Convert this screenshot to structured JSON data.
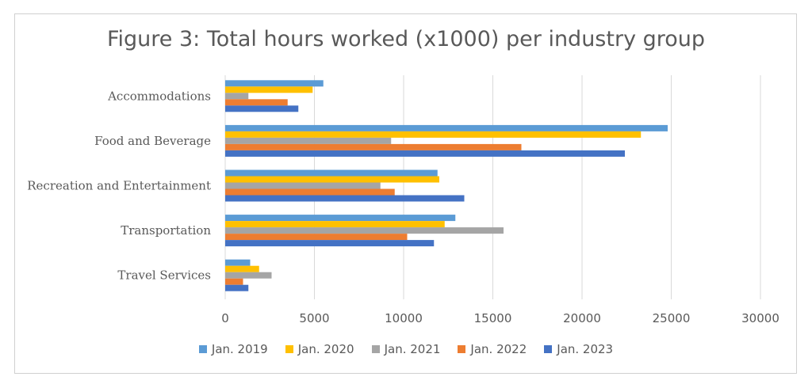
{
  "chart_data": {
    "type": "bar",
    "orientation": "horizontal",
    "title": "Figure 3: Total hours worked (x1000) per industry group",
    "categories": [
      "Accommodations",
      "Food and Beverage",
      "Recreation and Entertainment",
      "Transportation",
      "Travel Services"
    ],
    "series": [
      {
        "name": "Jan. 2019",
        "color": "#5B9BD5",
        "values": [
          5500,
          24800,
          11900,
          12900,
          1400
        ]
      },
      {
        "name": "Jan. 2020",
        "color": "#FFC000",
        "values": [
          4900,
          23300,
          12000,
          12300,
          1900
        ]
      },
      {
        "name": "Jan. 2021",
        "color": "#A5A5A5",
        "values": [
          1300,
          9300,
          8700,
          15600,
          2600
        ]
      },
      {
        "name": "Jan. 2022",
        "color": "#ED7D31",
        "values": [
          3500,
          16600,
          9500,
          10200,
          1000
        ]
      },
      {
        "name": "Jan. 2023",
        "color": "#4472C4",
        "values": [
          4100,
          22400,
          13400,
          11700,
          1300
        ]
      }
    ],
    "xlim": [
      0,
      30000
    ],
    "xticks": [
      "0",
      "5000",
      "10000",
      "15000",
      "20000",
      "25000",
      "30000"
    ],
    "grid": true,
    "legend_position": "bottom"
  }
}
